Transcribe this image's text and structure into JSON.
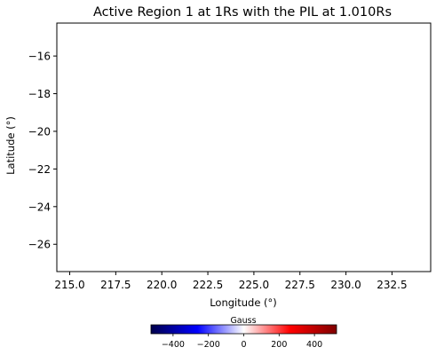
{
  "chart_data": {
    "type": "heatmap",
    "title": "Active Region 1 at 1Rs with the PIL at 1.010Rs",
    "xlabel": "Longitude (°)",
    "ylabel": "Latitude (°)",
    "xlim": [
      214.3,
      234.6
    ],
    "ylim": [
      -27.45,
      -14.25
    ],
    "xticks": [
      215.0,
      217.5,
      220.0,
      222.5,
      225.0,
      227.5,
      230.0,
      232.5
    ],
    "xtick_labels": [
      "215.0",
      "217.5",
      "220.0",
      "222.5",
      "225.0",
      "227.5",
      "230.0",
      "232.5"
    ],
    "yticks": [
      -16,
      -18,
      -20,
      -22,
      -24,
      -26
    ],
    "ytick_labels": [
      "−16",
      "−18",
      "−20",
      "−22",
      "−24",
      "−26"
    ],
    "grid": false,
    "data": [],
    "colorbar": {
      "label": "Gauss",
      "cmap": "seismic",
      "vmin": -525,
      "vmax": 525,
      "ticks": [
        -400,
        -200,
        0,
        200,
        400
      ],
      "tick_labels": [
        "−400",
        "−200",
        "0",
        "200",
        "400"
      ],
      "orientation": "horizontal",
      "position": "bottom",
      "colors": [
        "#00004c",
        "#0000ff",
        "#ffffff",
        "#ff0000",
        "#7f0000"
      ]
    }
  }
}
